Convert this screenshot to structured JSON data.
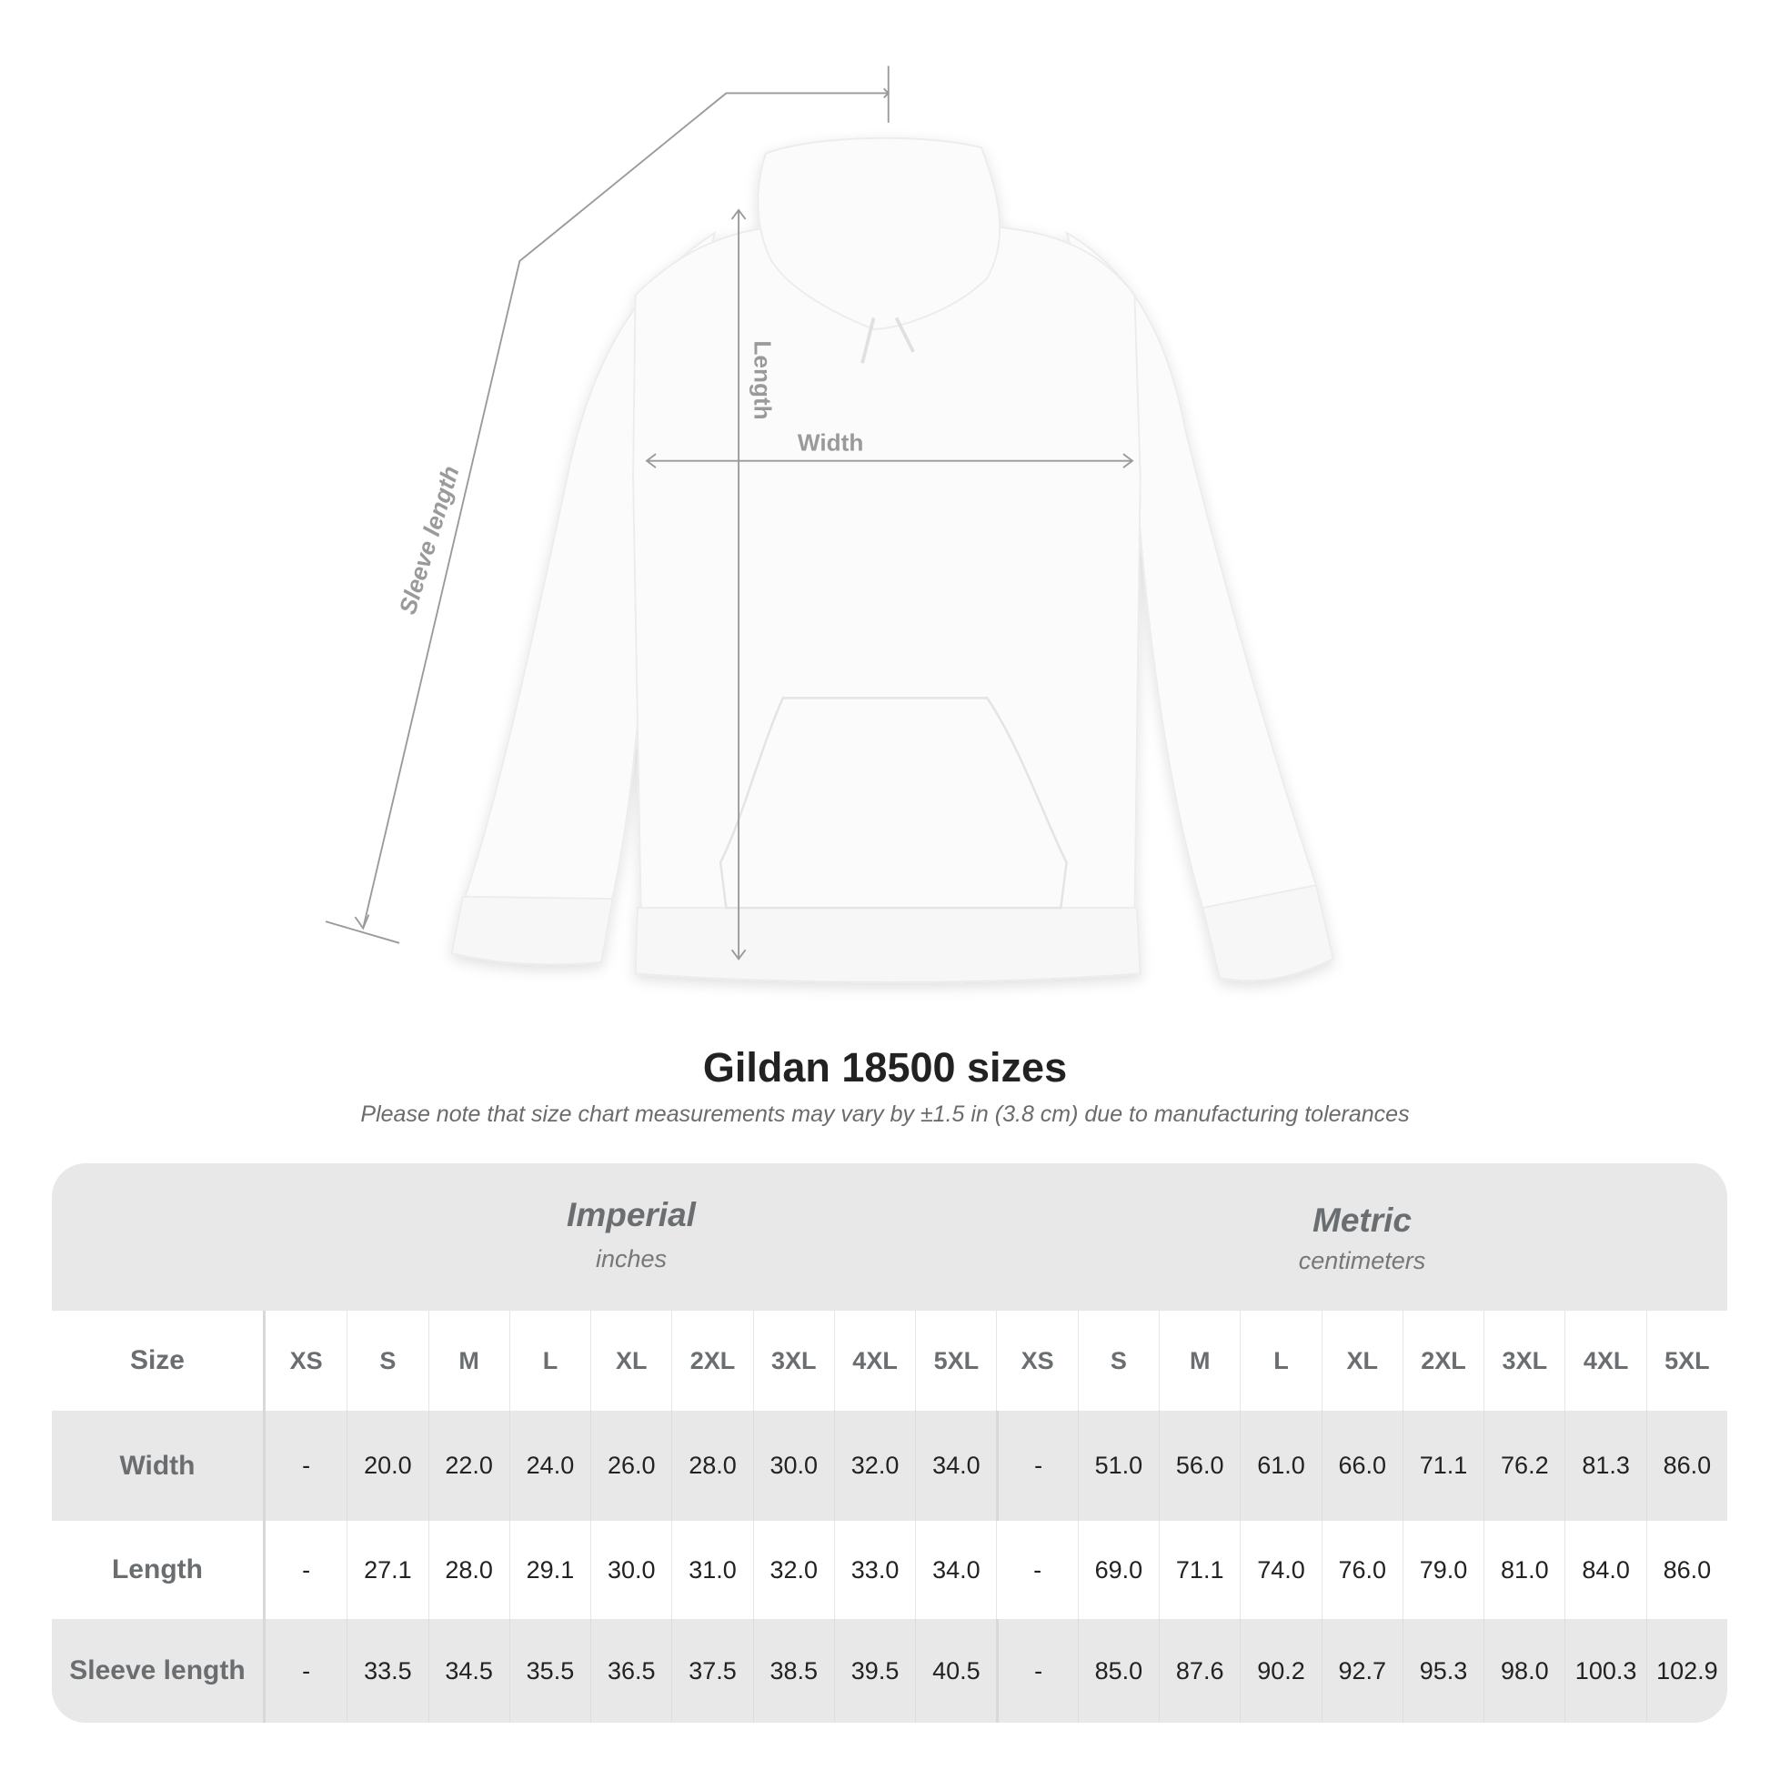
{
  "illustration": {
    "labels": {
      "sleeve": "Sleeve length",
      "length": "Length",
      "width": "Width"
    }
  },
  "title": "Gildan 18500 sizes",
  "subtitle": "Please note that size chart measurements may vary by ±1.5 in (3.8 cm) due to manufacturing tolerances",
  "table": {
    "imperial": {
      "title": "Imperial",
      "unit": "inches"
    },
    "metric": {
      "title": "Metric",
      "unit": "centimeters"
    },
    "size_label": "Size",
    "sizes": [
      "XS",
      "S",
      "M",
      "L",
      "XL",
      "2XL",
      "3XL",
      "4XL",
      "5XL"
    ],
    "rows": [
      {
        "label": "Width",
        "imperial": [
          "-",
          "20.0",
          "22.0",
          "24.0",
          "26.0",
          "28.0",
          "30.0",
          "32.0",
          "34.0"
        ],
        "metric": [
          "-",
          "51.0",
          "56.0",
          "61.0",
          "66.0",
          "71.1",
          "76.2",
          "81.3",
          "86.0"
        ]
      },
      {
        "label": "Length",
        "imperial": [
          "-",
          "27.1",
          "28.0",
          "29.1",
          "30.0",
          "31.0",
          "32.0",
          "33.0",
          "34.0"
        ],
        "metric": [
          "-",
          "69.0",
          "71.1",
          "74.0",
          "76.0",
          "79.0",
          "81.0",
          "84.0",
          "86.0"
        ]
      },
      {
        "label": "Sleeve length",
        "imperial": [
          "-",
          "33.5",
          "34.5",
          "35.5",
          "36.5",
          "37.5",
          "38.5",
          "39.5",
          "40.5"
        ],
        "metric": [
          "-",
          "85.0",
          "87.6",
          "90.2",
          "92.7",
          "95.3",
          "98.0",
          "100.3",
          "102.9"
        ]
      }
    ]
  },
  "colors": {
    "header_bg": "#e8e8e8",
    "label_text": "#6a6e70",
    "measure_line": "#9a9a9a"
  }
}
